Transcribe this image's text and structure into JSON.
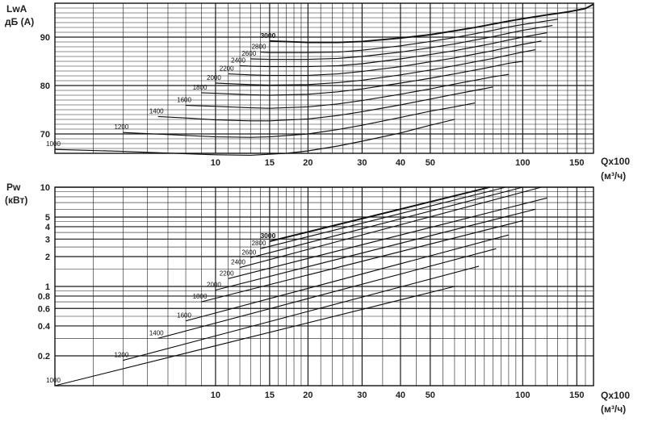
{
  "chart_data": [
    {
      "type": "line",
      "name": "sound-power",
      "ylabel": [
        "LwA",
        "дБ (А)"
      ],
      "xlabel": [
        "Qx100",
        "(м³/ч)"
      ],
      "x_scale": "log",
      "xlim": [
        3,
        170
      ],
      "ylim": [
        66,
        97
      ],
      "x_ticks": [
        10,
        15,
        20,
        30,
        40,
        50,
        100,
        150
      ],
      "y_ticks": [
        70,
        80,
        90
      ],
      "series": [
        {
          "name": "1000",
          "x": [
            3,
            5,
            8,
            10,
            13,
            17,
            20,
            25,
            30,
            40,
            50,
            60
          ],
          "y": [
            66.8,
            66.4,
            65.9,
            65.7,
            65.6,
            66.0,
            66.5,
            67.5,
            68.5,
            70.2,
            71.8,
            73.0
          ]
        },
        {
          "name": "1200",
          "x": [
            5,
            8,
            10,
            13,
            15,
            20,
            25,
            30,
            40,
            50,
            60,
            70
          ],
          "y": [
            70.3,
            69.7,
            69.4,
            69.3,
            69.4,
            70.0,
            70.9,
            71.8,
            73.4,
            74.7,
            75.6,
            76.4
          ]
        },
        {
          "name": "1400",
          "x": [
            6.5,
            8,
            10,
            13,
            15,
            20,
            25,
            30,
            40,
            50,
            60,
            70,
            80
          ],
          "y": [
            73.6,
            73.3,
            72.9,
            72.7,
            72.7,
            73.1,
            73.8,
            74.6,
            76.0,
            77.2,
            78.2,
            79.0,
            79.7
          ]
        },
        {
          "name": "1600",
          "x": [
            8,
            10,
            13,
            15,
            20,
            25,
            30,
            40,
            50,
            60,
            70,
            80,
            90
          ],
          "y": [
            75.9,
            75.7,
            75.4,
            75.3,
            75.6,
            76.2,
            76.9,
            78.2,
            79.3,
            80.3,
            81.1,
            81.8,
            82.3
          ]
        },
        {
          "name": "1800",
          "x": [
            9,
            10,
            13,
            15,
            20,
            25,
            30,
            40,
            50,
            60,
            70,
            80,
            90,
            100
          ],
          "y": [
            78.5,
            78.4,
            78.1,
            78.0,
            78.2,
            78.7,
            79.3,
            80.5,
            81.5,
            82.4,
            83.2,
            83.9,
            84.6,
            85.0
          ]
        },
        {
          "name": "2000",
          "x": [
            10,
            13,
            15,
            20,
            25,
            30,
            40,
            50,
            60,
            70,
            80,
            90,
            100,
            110
          ],
          "y": [
            80.5,
            80.2,
            80.1,
            80.2,
            80.6,
            81.1,
            82.2,
            83.2,
            84.1,
            84.9,
            85.6,
            86.3,
            86.9,
            87.4
          ]
        },
        {
          "name": "2200",
          "x": [
            11,
            13,
            15,
            20,
            25,
            30,
            40,
            50,
            60,
            70,
            80,
            90,
            100,
            115
          ],
          "y": [
            82.4,
            82.2,
            82.1,
            82.1,
            82.4,
            82.9,
            83.9,
            84.9,
            85.7,
            86.5,
            87.2,
            87.9,
            88.5,
            89.2
          ]
        },
        {
          "name": "2400",
          "x": [
            12,
            13,
            15,
            20,
            25,
            30,
            40,
            50,
            60,
            70,
            80,
            90,
            100,
            120
          ],
          "y": [
            84.1,
            84.0,
            83.9,
            83.9,
            84.1,
            84.5,
            85.5,
            86.4,
            87.2,
            88.0,
            88.7,
            89.4,
            90.0,
            90.9
          ]
        },
        {
          "name": "2600",
          "x": [
            13,
            15,
            20,
            25,
            30,
            40,
            50,
            60,
            70,
            80,
            90,
            100,
            125
          ],
          "y": [
            85.5,
            85.4,
            85.4,
            85.6,
            86.0,
            86.9,
            87.8,
            88.6,
            89.4,
            90.1,
            90.8,
            91.4,
            92.4
          ]
        },
        {
          "name": "2800",
          "x": [
            14,
            15,
            20,
            25,
            30,
            40,
            50,
            60,
            70,
            80,
            90,
            100,
            130
          ],
          "y": [
            86.9,
            86.8,
            86.8,
            86.9,
            87.3,
            88.2,
            89.1,
            89.9,
            90.7,
            91.4,
            92.1,
            92.6,
            93.7
          ]
        },
        {
          "name": "3000",
          "x": [
            15,
            20,
            25,
            30,
            40,
            50,
            60,
            70,
            80,
            90,
            100,
            120,
            140,
            160,
            170
          ],
          "y": [
            89.2,
            88.9,
            88.9,
            89.1,
            89.8,
            90.5,
            91.3,
            92.0,
            92.7,
            93.3,
            93.8,
            94.6,
            95.2,
            95.9,
            96.8
          ]
        }
      ]
    },
    {
      "type": "line",
      "name": "power",
      "ylabel": [
        "Pw",
        "(кВт)"
      ],
      "xlabel": [
        "Qx100",
        "(м³/ч)"
      ],
      "x_scale": "log",
      "y_scale": "log",
      "xlim": [
        3,
        170
      ],
      "ylim": [
        0.1,
        10
      ],
      "x_ticks": [
        10,
        15,
        20,
        30,
        40,
        50,
        100,
        150
      ],
      "y_ticks": [
        0.2,
        0.4,
        0.6,
        0.8,
        1,
        2,
        3,
        4,
        5,
        10
      ],
      "series": [
        {
          "name": "1000",
          "x": [
            3,
            60
          ],
          "y": [
            0.1,
            1.0
          ]
        },
        {
          "name": "1200",
          "x": [
            5,
            72
          ],
          "y": [
            0.18,
            1.6
          ]
        },
        {
          "name": "1400",
          "x": [
            6.5,
            82
          ],
          "y": [
            0.3,
            2.4
          ]
        },
        {
          "name": "1600",
          "x": [
            8,
            90
          ],
          "y": [
            0.45,
            3.3
          ]
        },
        {
          "name": "1800",
          "x": [
            9,
            100
          ],
          "y": [
            0.7,
            4.6
          ]
        },
        {
          "name": "2000",
          "x": [
            10,
            110
          ],
          "y": [
            0.92,
            6.0
          ]
        },
        {
          "name": "2200",
          "x": [
            11,
            120
          ],
          "y": [
            1.2,
            7.8
          ]
        },
        {
          "name": "2400",
          "x": [
            12,
            115
          ],
          "y": [
            1.55,
            10
          ]
        },
        {
          "name": "2600",
          "x": [
            13,
            100
          ],
          "y": [
            1.95,
            10
          ]
        },
        {
          "name": "2800",
          "x": [
            14,
            88
          ],
          "y": [
            2.4,
            10
          ]
        },
        {
          "name": "3000",
          "x": [
            15,
            78
          ],
          "y": [
            2.85,
            10
          ]
        }
      ]
    }
  ]
}
